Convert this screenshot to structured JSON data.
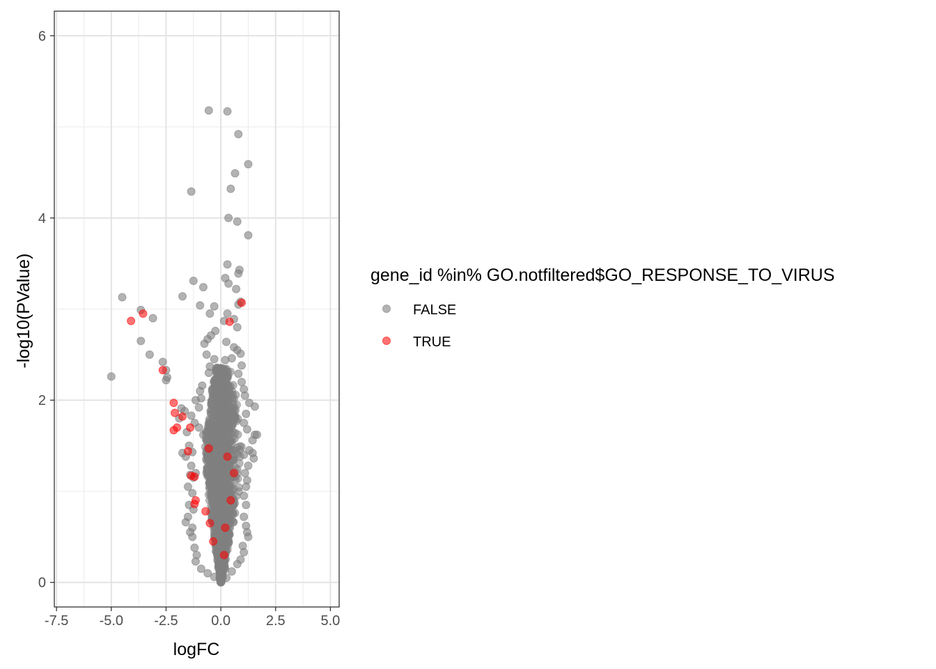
{
  "chart_data": {
    "type": "scatter",
    "xlabel": "logFC",
    "ylabel": "-log10(PValue)",
    "xlim": [
      -7.6,
      5.4
    ],
    "ylim": [
      -0.27,
      6.27
    ],
    "xticks": [
      -7.5,
      -5.0,
      -2.5,
      0.0,
      2.5,
      5.0
    ],
    "xtick_labels": [
      "-7.5",
      "-5.0",
      "-2.5",
      "0.0",
      "2.5",
      "5.0"
    ],
    "yticks": [
      0,
      2,
      4,
      6
    ],
    "ytick_labels": [
      "0",
      "2",
      "4",
      "6"
    ],
    "grid": true,
    "legend": {
      "title": "gene_id %in% GO.notfiltered$GO_RESPONSE_TO_VIRUS",
      "placement": "right",
      "entries": [
        {
          "label": "FALSE",
          "color": "#808080"
        },
        {
          "label": "TRUE",
          "color": "#ff0000"
        }
      ]
    },
    "series": [
      {
        "name": "FALSE",
        "color": "#808080",
        "points": [
          [
            -0.55,
            5.18
          ],
          [
            0.3,
            5.17
          ],
          [
            0.8,
            4.92
          ],
          [
            1.25,
            4.59
          ],
          [
            0.65,
            4.49
          ],
          [
            -1.35,
            4.29
          ],
          [
            0.45,
            4.32
          ],
          [
            0.35,
            4.0
          ],
          [
            0.75,
            3.96
          ],
          [
            1.25,
            3.81
          ],
          [
            0.3,
            3.49
          ],
          [
            0.85,
            3.43
          ],
          [
            0.8,
            3.39
          ],
          [
            0.2,
            3.34
          ],
          [
            0.35,
            3.28
          ],
          [
            0.7,
            3.22
          ],
          [
            -1.25,
            3.31
          ],
          [
            -0.8,
            3.24
          ],
          [
            -4.5,
            3.13
          ],
          [
            -1.75,
            3.14
          ],
          [
            -0.95,
            3.04
          ],
          [
            -0.3,
            3.03
          ],
          [
            0.9,
            3.08
          ],
          [
            0.8,
            3.05
          ],
          [
            0.3,
            2.95
          ],
          [
            -3.65,
            2.99
          ],
          [
            -3.1,
            2.9
          ],
          [
            -0.5,
            2.95
          ],
          [
            0.15,
            2.87
          ],
          [
            0.6,
            2.89
          ],
          [
            0.75,
            2.8
          ],
          [
            -3.65,
            2.65
          ],
          [
            -0.25,
            2.76
          ],
          [
            -0.45,
            2.71
          ],
          [
            -0.6,
            2.67
          ],
          [
            -0.75,
            2.62
          ],
          [
            0.25,
            2.64
          ],
          [
            0.6,
            2.58
          ],
          [
            0.75,
            2.55
          ],
          [
            0.9,
            2.51
          ],
          [
            -3.25,
            2.5
          ],
          [
            -0.65,
            2.5
          ],
          [
            -0.3,
            2.45
          ],
          [
            0.5,
            2.46
          ],
          [
            0.2,
            2.44
          ],
          [
            -2.65,
            2.42
          ],
          [
            -2.5,
            2.33
          ],
          [
            -2.45,
            2.25
          ],
          [
            -2.5,
            2.22
          ],
          [
            -5.0,
            2.26
          ],
          [
            -0.5,
            2.37
          ],
          [
            -0.55,
            2.3
          ],
          [
            0.95,
            2.38
          ],
          [
            0.8,
            2.29
          ],
          [
            0.95,
            2.2
          ],
          [
            1.05,
            2.12
          ],
          [
            1.1,
            2.05
          ],
          [
            1.3,
            1.97
          ],
          [
            1.55,
            1.93
          ],
          [
            -0.85,
            2.16
          ],
          [
            -0.95,
            2.1
          ],
          [
            -0.9,
            2.02
          ],
          [
            -1.15,
            2.0
          ],
          [
            -1.0,
            1.92
          ],
          [
            -1.8,
            1.91
          ],
          [
            -1.65,
            1.88
          ],
          [
            -1.9,
            1.8
          ],
          [
            -1.35,
            1.83
          ],
          [
            -1.2,
            1.75
          ],
          [
            -1.55,
            1.65
          ],
          [
            -1.0,
            1.7
          ],
          [
            -0.8,
            1.62
          ],
          [
            1.15,
            1.85
          ],
          [
            1.05,
            1.75
          ],
          [
            1.2,
            1.68
          ],
          [
            1.55,
            1.62
          ],
          [
            1.65,
            1.62
          ],
          [
            1.45,
            1.56
          ],
          [
            -1.45,
            1.5
          ],
          [
            -1.3,
            1.43
          ],
          [
            -1.75,
            1.42
          ],
          [
            -1.6,
            1.38
          ],
          [
            1.3,
            1.45
          ],
          [
            1.45,
            1.42
          ],
          [
            1.5,
            1.36
          ],
          [
            1.05,
            1.4
          ],
          [
            -1.35,
            1.28
          ],
          [
            -1.15,
            1.2
          ],
          [
            -1.4,
            1.18
          ],
          [
            -1.25,
            1.15
          ],
          [
            1.25,
            1.28
          ],
          [
            1.1,
            1.2
          ],
          [
            1.2,
            1.12
          ],
          [
            -1.5,
            1.05
          ],
          [
            -1.3,
            0.98
          ],
          [
            1.15,
            1.05
          ],
          [
            1.05,
            0.95
          ],
          [
            -1.45,
            0.85
          ],
          [
            -1.25,
            0.8
          ],
          [
            1.15,
            0.85
          ],
          [
            -1.5,
            0.72
          ],
          [
            -1.6,
            0.66
          ],
          [
            -1.3,
            0.6
          ],
          [
            1.05,
            0.72
          ],
          [
            1.15,
            0.62
          ],
          [
            -1.4,
            0.55
          ],
          [
            -1.3,
            0.5
          ],
          [
            1.2,
            0.55
          ],
          [
            1.25,
            0.5
          ],
          [
            -1.2,
            0.38
          ],
          [
            -1.1,
            0.3
          ],
          [
            -1.15,
            0.23
          ],
          [
            1.0,
            0.4
          ],
          [
            1.05,
            0.33
          ],
          [
            0.9,
            0.25
          ],
          [
            0.75,
            0.2
          ],
          [
            -0.9,
            0.15
          ],
          [
            -0.6,
            0.1
          ],
          [
            0.5,
            0.12
          ],
          [
            -0.3,
            0.06
          ],
          [
            0.25,
            0.05
          ],
          [
            0.0,
            0.0
          ]
        ]
      },
      {
        "name": "TRUE",
        "color": "#ff0000",
        "points": [
          [
            -4.1,
            2.87
          ],
          [
            -3.55,
            2.95
          ],
          [
            -2.65,
            2.33
          ],
          [
            0.4,
            2.86
          ],
          [
            0.95,
            3.07
          ],
          [
            -2.15,
            1.97
          ],
          [
            -2.1,
            1.86
          ],
          [
            -1.75,
            1.82
          ],
          [
            -2.0,
            1.7
          ],
          [
            -2.15,
            1.67
          ],
          [
            -1.4,
            1.7
          ],
          [
            -1.5,
            1.44
          ],
          [
            -0.55,
            1.47
          ],
          [
            -1.35,
            1.17
          ],
          [
            -1.2,
            1.16
          ],
          [
            -1.15,
            0.9
          ],
          [
            -1.2,
            0.86
          ],
          [
            -0.7,
            0.78
          ],
          [
            -0.5,
            0.65
          ],
          [
            0.3,
            1.38
          ],
          [
            0.6,
            1.2
          ],
          [
            0.45,
            0.9
          ],
          [
            0.2,
            0.6
          ],
          [
            -0.35,
            0.45
          ],
          [
            0.15,
            0.3
          ]
        ]
      }
    ],
    "dense_cloud": {
      "series": "FALSE",
      "description_only_for_rendering": false,
      "rows": [
        [
          0.0,
          0.02,
          0.05
        ],
        [
          0.1,
          0.06,
          0.12
        ],
        [
          0.2,
          0.12,
          0.22
        ],
        [
          0.3,
          0.18,
          0.32
        ],
        [
          0.4,
          0.24,
          0.42
        ],
        [
          0.5,
          0.3,
          0.52
        ],
        [
          0.6,
          0.35,
          0.6
        ],
        [
          0.7,
          0.42,
          0.68
        ],
        [
          0.8,
          0.48,
          0.75
        ],
        [
          0.9,
          0.52,
          0.82
        ],
        [
          1.0,
          0.58,
          0.88
        ],
        [
          1.1,
          0.62,
          0.92
        ],
        [
          1.2,
          0.66,
          0.95
        ],
        [
          1.3,
          0.7,
          0.98
        ],
        [
          1.4,
          0.72,
          1.0
        ],
        [
          1.5,
          0.72,
          1.02
        ],
        [
          1.6,
          0.7,
          1.0
        ],
        [
          1.7,
          0.62,
          0.95
        ],
        [
          1.8,
          0.55,
          0.92
        ],
        [
          1.9,
          0.5,
          0.88
        ],
        [
          2.0,
          0.45,
          0.82
        ],
        [
          2.1,
          0.4,
          0.72
        ],
        [
          2.2,
          0.32,
          0.6
        ],
        [
          2.3,
          0.25,
          0.45
        ]
      ]
    }
  }
}
